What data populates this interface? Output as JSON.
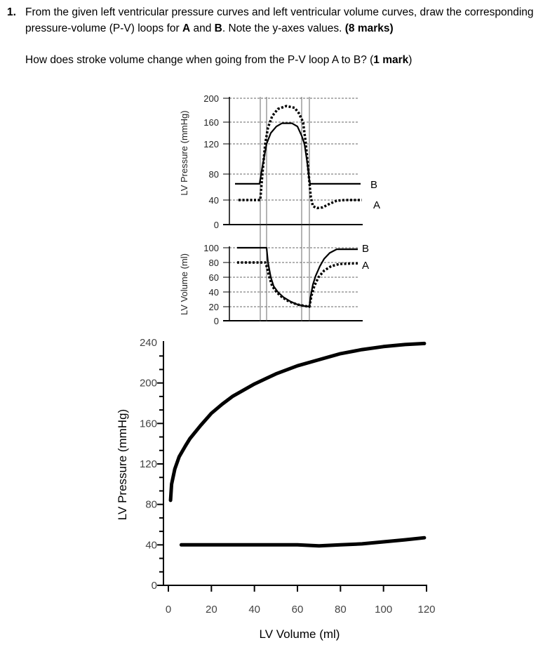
{
  "question": {
    "number": "1.",
    "text_1": "From the given left ventricular pressure curves and left ventricular volume curves, draw the corresponding pressure-volume (P-V) loops for ",
    "bold_a": "A",
    "text_2": " and ",
    "bold_b": "B",
    "text_3": ". Note the y-axes values. ",
    "marks_1": "(8 marks)",
    "sub_text": "How does stroke volume change when going from the P-V loop A to B? (",
    "marks_2": "1 mark",
    "sub_end": ")"
  },
  "chart_data": [
    {
      "type": "line",
      "ylabel": "LV Pressure (mmHg)",
      "yticks": [
        0,
        40,
        80,
        120,
        160,
        200
      ],
      "ylim": [
        0,
        200
      ],
      "grid": "dashed horizontal",
      "series": [
        {
          "name": "B",
          "style": "solid",
          "points": [
            [
              7.5,
              65
            ],
            [
              25,
              65
            ],
            [
              27,
              90
            ],
            [
              30,
              120
            ],
            [
              33,
              140
            ],
            [
              37,
              152
            ],
            [
              41,
              158
            ],
            [
              48,
              158
            ],
            [
              52,
              152
            ],
            [
              55,
              135
            ],
            [
              57,
              120
            ],
            [
              59,
              95
            ],
            [
              60.5,
              70
            ],
            [
              61,
              65
            ],
            [
              97,
              65
            ]
          ]
        },
        {
          "name": "A",
          "style": "dotted",
          "points": [
            [
              10,
              40
            ],
            [
              25.5,
              40
            ],
            [
              27,
              80
            ],
            [
              29,
              120
            ],
            [
              31,
              150
            ],
            [
              34,
              170
            ],
            [
              38,
              182
            ],
            [
              44,
              187
            ],
            [
              50,
              184
            ],
            [
              53,
              175
            ],
            [
              56,
              160
            ],
            [
              58,
              120
            ],
            [
              60,
              80
            ],
            [
              61.5,
              45
            ],
            [
              63,
              30
            ],
            [
              66,
              27
            ],
            [
              70,
              28
            ],
            [
              75,
              34
            ],
            [
              80,
              39
            ],
            [
              86,
              40
            ],
            [
              98,
              40
            ]
          ]
        }
      ]
    },
    {
      "type": "line",
      "ylabel": "LV Volume (ml)",
      "yticks": [
        0,
        20,
        40,
        60,
        80,
        100
      ],
      "ylim": [
        0,
        100
      ],
      "grid": "dashed horizontal",
      "series": [
        {
          "name": "B",
          "style": "solid",
          "points": [
            [
              9,
              100
            ],
            [
              30,
              100
            ],
            [
              31,
              80
            ],
            [
              33,
              60
            ],
            [
              35,
              48
            ],
            [
              38,
              40
            ],
            [
              42,
              33
            ],
            [
              47,
              27
            ],
            [
              52,
              23
            ],
            [
              57,
              21
            ],
            [
              60.5,
              20
            ],
            [
              61.5,
              35
            ],
            [
              63,
              50
            ],
            [
              65,
              62
            ],
            [
              68,
              75
            ],
            [
              71,
              85
            ],
            [
              75,
              93
            ],
            [
              80,
              98
            ],
            [
              95,
              98
            ]
          ]
        },
        {
          "name": "A",
          "style": "dotted",
          "points": [
            [
              9,
              80
            ],
            [
              29,
              80
            ],
            [
              30,
              75
            ],
            [
              32,
              60
            ],
            [
              34,
              48
            ],
            [
              37,
              40
            ],
            [
              41,
              33
            ],
            [
              46,
              27
            ],
            [
              52,
              23
            ],
            [
              57,
              21
            ],
            [
              60.5,
              20
            ],
            [
              62,
              35
            ],
            [
              64,
              48
            ],
            [
              67,
              60
            ],
            [
              71,
              69
            ],
            [
              76,
              75
            ],
            [
              82,
              78
            ],
            [
              95,
              79
            ]
          ]
        }
      ]
    },
    {
      "type": "line",
      "xlabel": "LV Volume (ml)",
      "ylabel": "LV Pressure (mmHg)",
      "xticks": [
        0,
        20,
        40,
        60,
        80,
        100,
        120
      ],
      "yticks": [
        0,
        40,
        80,
        120,
        160,
        200,
        240
      ],
      "xlim": [
        0,
        120
      ],
      "ylim": [
        0,
        240
      ],
      "grid": "off",
      "series": [
        {
          "points": [
            [
              1,
              84
            ],
            [
              1.5,
              100
            ],
            [
              3,
              115
            ],
            [
              5,
              127
            ],
            [
              8,
              138
            ],
            [
              10,
              145
            ],
            [
              15,
              158
            ],
            [
              20,
              170
            ],
            [
              25,
              179
            ],
            [
              30,
              187
            ],
            [
              40,
              199
            ],
            [
              50,
              209
            ],
            [
              60,
              217
            ],
            [
              70,
              223
            ],
            [
              80,
              229
            ],
            [
              90,
              233
            ],
            [
              100,
              236
            ],
            [
              110,
              238
            ],
            [
              119,
              239
            ]
          ]
        },
        {
          "points": [
            [
              6,
              40
            ],
            [
              60,
              40
            ],
            [
              70,
              39
            ],
            [
              80,
              40
            ],
            [
              90,
              41
            ],
            [
              100,
              43
            ],
            [
              110,
              45
            ],
            [
              119,
              47
            ]
          ]
        }
      ]
    }
  ]
}
